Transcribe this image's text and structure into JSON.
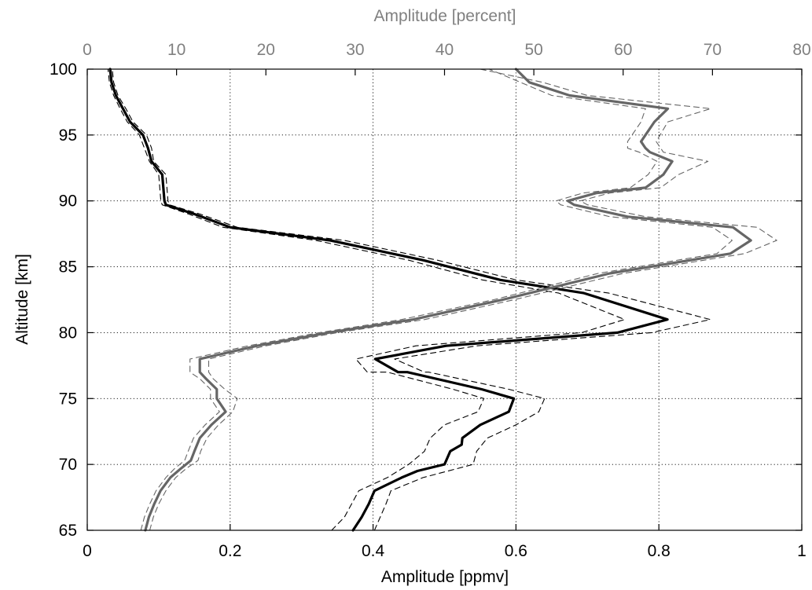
{
  "chart_data": {
    "type": "line",
    "title": "",
    "colors": {
      "black_series": "#000000",
      "gray_series": "#666666",
      "top_axis": "#808080",
      "grid": "#000000"
    },
    "axes": {
      "bottom": {
        "label": "Amplitude [ppmv]",
        "range": [
          0,
          1
        ],
        "ticks": [
          0,
          0.2,
          0.4,
          0.6,
          0.8,
          1
        ],
        "tick_labels": [
          "0",
          "0.2",
          "0.4",
          "0.6",
          "0.8",
          "1"
        ]
      },
      "top": {
        "label": "Amplitude [percent]",
        "range": [
          0,
          80
        ],
        "ticks": [
          0,
          10,
          20,
          30,
          40,
          50,
          60,
          70,
          80
        ],
        "tick_labels": [
          "0",
          "10",
          "20",
          "30",
          "40",
          "50",
          "60",
          "70",
          "80"
        ]
      },
      "left": {
        "label": "Altitude [km]",
        "range": [
          65,
          100
        ],
        "ticks": [
          65,
          70,
          75,
          80,
          85,
          90,
          95,
          100
        ],
        "tick_labels": [
          "65",
          "70",
          "75",
          "80",
          "85",
          "90",
          "95",
          "100"
        ]
      }
    },
    "grid": true,
    "series": [
      {
        "axis": "bottom",
        "style": "solid",
        "color": "black",
        "points": [
          [
            0.372,
            65
          ],
          [
            0.384,
            66
          ],
          [
            0.394,
            67
          ],
          [
            0.402,
            68
          ],
          [
            0.44,
            69
          ],
          [
            0.462,
            69.5
          ],
          [
            0.5,
            70
          ],
          [
            0.508,
            71
          ],
          [
            0.524,
            71.5
          ],
          [
            0.525,
            72
          ],
          [
            0.55,
            73
          ],
          [
            0.59,
            74
          ],
          [
            0.597,
            75
          ],
          [
            0.552,
            75.7
          ],
          [
            0.448,
            77
          ],
          [
            0.435,
            77
          ],
          [
            0.403,
            78
          ],
          [
            0.502,
            79
          ],
          [
            0.742,
            80
          ],
          [
            0.812,
            81
          ],
          [
            0.695,
            83
          ],
          [
            0.578,
            84
          ],
          [
            0.47,
            85.5
          ],
          [
            0.34,
            87
          ],
          [
            0.2,
            88
          ],
          [
            0.15,
            89
          ],
          [
            0.11,
            89.7
          ],
          [
            0.108,
            90
          ],
          [
            0.105,
            92
          ],
          [
            0.09,
            93
          ],
          [
            0.085,
            94
          ],
          [
            0.078,
            95
          ],
          [
            0.06,
            96
          ],
          [
            0.05,
            97
          ],
          [
            0.04,
            98
          ],
          [
            0.034,
            99
          ],
          [
            0.032,
            100
          ]
        ]
      },
      {
        "axis": "bottom",
        "style": "dashed",
        "color": "black",
        "points": [
          [
            0.342,
            65
          ],
          [
            0.36,
            66
          ],
          [
            0.37,
            67
          ],
          [
            0.38,
            68
          ],
          [
            0.42,
            69
          ],
          [
            0.45,
            70
          ],
          [
            0.472,
            71
          ],
          [
            0.48,
            72
          ],
          [
            0.5,
            73
          ],
          [
            0.547,
            74
          ],
          [
            0.555,
            75
          ],
          [
            0.512,
            75.7
          ],
          [
            0.42,
            77
          ],
          [
            0.392,
            77
          ],
          [
            0.376,
            78
          ],
          [
            0.46,
            79
          ],
          [
            0.692,
            80
          ],
          [
            0.752,
            81
          ],
          [
            0.66,
            83
          ],
          [
            0.553,
            84
          ],
          [
            0.45,
            85.5
          ],
          [
            0.32,
            87
          ],
          [
            0.19,
            88
          ],
          [
            0.142,
            89
          ],
          [
            0.105,
            89.7
          ],
          [
            0.103,
            90
          ],
          [
            0.1,
            92
          ],
          [
            0.087,
            93
          ],
          [
            0.08,
            94
          ],
          [
            0.073,
            95
          ],
          [
            0.056,
            96
          ],
          [
            0.046,
            97
          ],
          [
            0.037,
            98
          ],
          [
            0.031,
            99
          ],
          [
            0.029,
            100
          ]
        ]
      },
      {
        "axis": "bottom",
        "style": "dashed",
        "color": "black",
        "points": [
          [
            0.402,
            65
          ],
          [
            0.41,
            66
          ],
          [
            0.418,
            67
          ],
          [
            0.425,
            68
          ],
          [
            0.47,
            69
          ],
          [
            0.54,
            70
          ],
          [
            0.545,
            71
          ],
          [
            0.56,
            72
          ],
          [
            0.6,
            73
          ],
          [
            0.632,
            74
          ],
          [
            0.64,
            75
          ],
          [
            0.59,
            75.7
          ],
          [
            0.478,
            77
          ],
          [
            0.472,
            77
          ],
          [
            0.43,
            78
          ],
          [
            0.545,
            79
          ],
          [
            0.79,
            80
          ],
          [
            0.872,
            81
          ],
          [
            0.73,
            83
          ],
          [
            0.6,
            84
          ],
          [
            0.49,
            85.5
          ],
          [
            0.36,
            87
          ],
          [
            0.21,
            88
          ],
          [
            0.158,
            89
          ],
          [
            0.115,
            89.7
          ],
          [
            0.113,
            90
          ],
          [
            0.11,
            92
          ],
          [
            0.093,
            93
          ],
          [
            0.09,
            94
          ],
          [
            0.083,
            95
          ],
          [
            0.064,
            96
          ],
          [
            0.054,
            97
          ],
          [
            0.043,
            98
          ],
          [
            0.037,
            99
          ],
          [
            0.035,
            100
          ]
        ]
      },
      {
        "axis": "top",
        "style": "solid",
        "color": "gray",
        "points": [
          [
            6.5,
            65
          ],
          [
            6.9,
            66
          ],
          [
            7.5,
            67
          ],
          [
            8.2,
            68
          ],
          [
            9.3,
            69
          ],
          [
            10.5,
            69.7
          ],
          [
            11.6,
            70.3
          ],
          [
            12,
            71
          ],
          [
            12.6,
            72
          ],
          [
            13.9,
            73
          ],
          [
            15.5,
            74
          ],
          [
            14.5,
            75
          ],
          [
            14.5,
            75.7
          ],
          [
            13.3,
            76.5
          ],
          [
            12.6,
            77
          ],
          [
            12.6,
            78
          ],
          [
            19,
            79
          ],
          [
            27,
            80
          ],
          [
            36.5,
            81
          ],
          [
            46.5,
            82.5
          ],
          [
            58.5,
            84.5
          ],
          [
            72,
            86
          ],
          [
            74.3,
            87
          ],
          [
            72.3,
            88
          ],
          [
            60.5,
            88.8
          ],
          [
            54.5,
            89.7
          ],
          [
            53.8,
            90
          ],
          [
            57,
            90.6
          ],
          [
            62.5,
            91
          ],
          [
            64.5,
            92
          ],
          [
            65.5,
            93
          ],
          [
            63,
            93.7
          ],
          [
            62.5,
            94
          ],
          [
            62,
            94.5
          ],
          [
            63.5,
            96
          ],
          [
            65,
            97
          ],
          [
            54,
            98
          ],
          [
            49.5,
            99
          ],
          [
            48,
            100
          ]
        ]
      },
      {
        "axis": "top",
        "style": "dashed",
        "color": "gray",
        "points": [
          [
            6,
            65
          ],
          [
            6.4,
            66
          ],
          [
            7,
            67
          ],
          [
            7.7,
            68
          ],
          [
            8.8,
            69
          ],
          [
            9.8,
            69.7
          ],
          [
            10.9,
            70.3
          ],
          [
            11.3,
            71
          ],
          [
            11.9,
            72
          ],
          [
            13.2,
            73
          ],
          [
            14.8,
            74
          ],
          [
            13.8,
            75
          ],
          [
            13.8,
            75.7
          ],
          [
            12.6,
            76.5
          ],
          [
            11.5,
            77
          ],
          [
            11.5,
            78
          ],
          [
            18,
            79
          ],
          [
            26,
            80
          ],
          [
            35.2,
            81
          ],
          [
            45.5,
            82.5
          ],
          [
            57.2,
            84.5
          ],
          [
            70.5,
            86
          ],
          [
            72.2,
            87
          ],
          [
            70,
            88
          ],
          [
            58.5,
            88.8
          ],
          [
            53,
            89.7
          ],
          [
            52.5,
            90
          ],
          [
            55.5,
            90.6
          ],
          [
            60.8,
            91
          ],
          [
            62.8,
            92
          ],
          [
            63.8,
            93
          ],
          [
            61.8,
            93.7
          ],
          [
            60.5,
            94
          ],
          [
            60.5,
            94.5
          ],
          [
            62,
            96
          ],
          [
            62.5,
            97
          ],
          [
            52,
            98
          ],
          [
            48.5,
            99
          ],
          [
            45,
            100
          ]
        ]
      },
      {
        "axis": "top",
        "style": "dashed",
        "color": "gray",
        "points": [
          [
            7,
            65
          ],
          [
            7.4,
            66
          ],
          [
            8,
            67
          ],
          [
            8.8,
            68
          ],
          [
            9.9,
            69
          ],
          [
            11.1,
            69.7
          ],
          [
            12.4,
            70.3
          ],
          [
            12.7,
            71
          ],
          [
            13.4,
            72
          ],
          [
            14.7,
            73
          ],
          [
            16.3,
            74
          ],
          [
            16.8,
            75
          ],
          [
            15.4,
            75.7
          ],
          [
            14.1,
            76.5
          ],
          [
            13.6,
            77
          ],
          [
            13.6,
            78
          ],
          [
            20,
            79
          ],
          [
            28,
            80
          ],
          [
            37.8,
            81
          ],
          [
            47.8,
            82.5
          ],
          [
            60,
            84.5
          ],
          [
            73.6,
            86
          ],
          [
            77.2,
            87
          ],
          [
            75,
            88
          ],
          [
            62.5,
            88.8
          ],
          [
            56,
            89.7
          ],
          [
            55.2,
            90
          ],
          [
            58.5,
            90.6
          ],
          [
            64.2,
            91
          ],
          [
            66.2,
            92
          ],
          [
            69.5,
            93
          ],
          [
            64.5,
            93.7
          ],
          [
            64.2,
            94
          ],
          [
            63.7,
            94.5
          ],
          [
            65,
            96
          ],
          [
            69.8,
            97
          ],
          [
            56,
            98
          ],
          [
            51,
            99
          ],
          [
            44,
            100
          ]
        ]
      }
    ]
  }
}
